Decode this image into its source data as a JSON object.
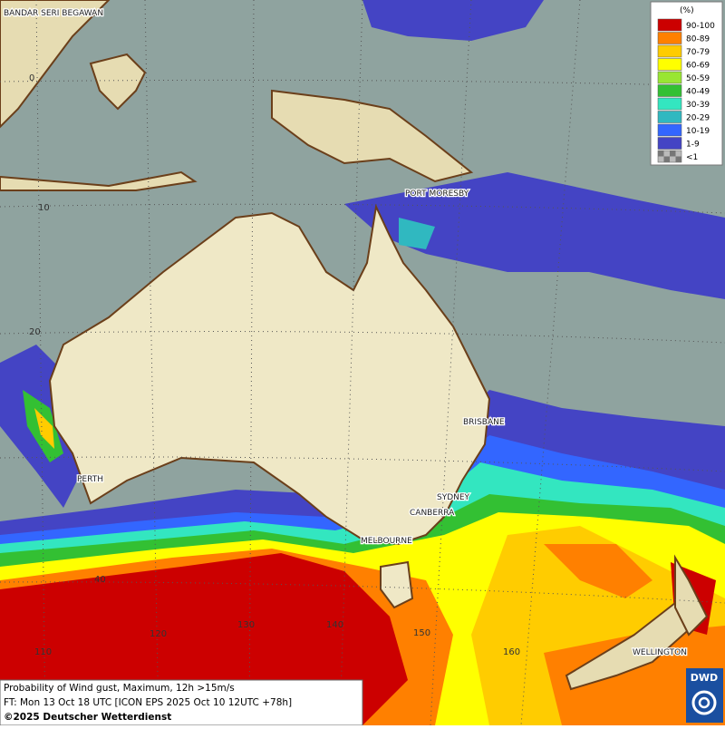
{
  "legend": {
    "unit": "(%)",
    "items": [
      {
        "label": "90-100",
        "color": "#cc0000"
      },
      {
        "label": "80-89",
        "color": "#ff8000"
      },
      {
        "label": "70-79",
        "color": "#ffcc00"
      },
      {
        "label": "60-69",
        "color": "#ffff00"
      },
      {
        "label": "50-59",
        "color": "#99e633"
      },
      {
        "label": "40-49",
        "color": "#33c033"
      },
      {
        "label": "30-39",
        "color": "#33e6c0"
      },
      {
        "label": "20-29",
        "color": "#30b8c0"
      },
      {
        "label": "10-19",
        "color": "#3366ff"
      },
      {
        "label": "1-9",
        "color": "#4444c4"
      },
      {
        "label": "<1",
        "color": "#bbbbbb"
      }
    ]
  },
  "cities": [
    "BANDAR SERI BEGAWAN",
    "PORT MORESBY",
    "BRISBANE",
    "PERTH",
    "SYDNEY",
    "CANBERRA",
    "MELBOURNE",
    "WELLINGTON"
  ],
  "latitude_labels": [
    "0",
    "10",
    "20",
    "40"
  ],
  "longitude_labels": [
    "110",
    "120",
    "130",
    "140",
    "150",
    "160"
  ],
  "footer": {
    "line1": "Probability of Wind gust, Maximum, 12h >15m/s",
    "line2": "FT: Mon 13 Oct 18 UTC [ICON EPS 2025 Oct 10 12UTC +78h]",
    "line3": "©2025 Deutscher Wetterdienst"
  },
  "logo": "DWD"
}
